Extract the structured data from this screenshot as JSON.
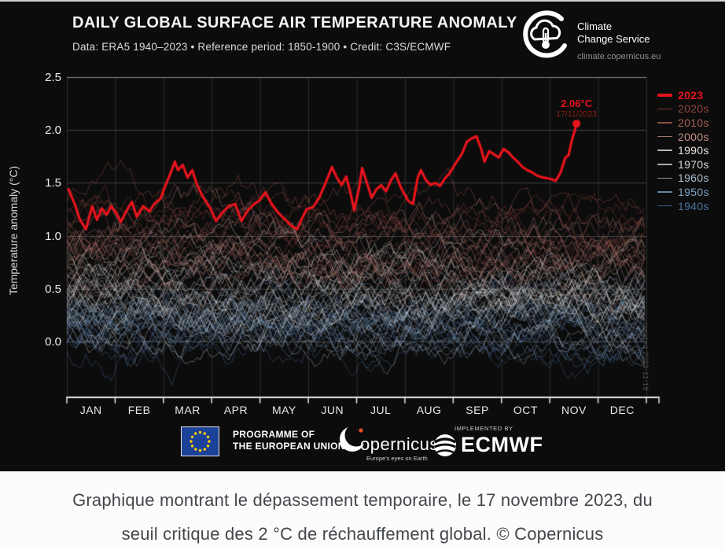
{
  "header": {
    "title": "DAILY GLOBAL SURFACE AIR TEMPERATURE ANOMALY",
    "subtitle": "Data: ERA5 1940–2023 • Reference period: 1850-1900 • Credit: C3S/ECMWF"
  },
  "ccs_logo": {
    "line1": "Climate",
    "line2": "Change Service",
    "url": "climate.copernicus.eu"
  },
  "chart_data": {
    "type": "line",
    "title": "DAILY GLOBAL SURFACE AIR TEMPERATURE ANOMALY",
    "subtitle": "Data: ERA5 1940–2023 • Reference period: 1850-1900 • Credit: C3S/ECMWF",
    "ylabel": "Temperature anomaly (°C)",
    "ylim": [
      -0.54,
      2.5
    ],
    "yticks": [
      0.0,
      0.5,
      1.0,
      1.5,
      2.0,
      2.5
    ],
    "grid": true,
    "months": [
      "JAN",
      "FEB",
      "MAR",
      "APR",
      "MAY",
      "JUN",
      "JUL",
      "AUG",
      "SEP",
      "OCT",
      "NOV",
      "DEC"
    ],
    "legend_position": "right",
    "legend": [
      {
        "label": "2023",
        "color": "#e5131d",
        "bold": true
      },
      {
        "label": "2020s",
        "color": "#94453c"
      },
      {
        "label": "2010s",
        "color": "#ab5f53"
      },
      {
        "label": "2000s",
        "color": "#c5908a"
      },
      {
        "label": "1990s",
        "color": "#e9e1da"
      },
      {
        "label": "1970s",
        "color": "#d5d5d5"
      },
      {
        "label": "1960s",
        "color": "#a9bccc"
      },
      {
        "label": "1950s",
        "color": "#7fa3c6"
      },
      {
        "label": "1940s",
        "color": "#4d72a3"
      }
    ],
    "decade_bands": [
      {
        "name": "1940s",
        "color": "#4d72a3",
        "center": 0.13,
        "years": 10,
        "spread": 0.035
      },
      {
        "name": "1950s",
        "color": "#7fa3c6",
        "center": 0.18,
        "years": 10,
        "spread": 0.035
      },
      {
        "name": "1960s",
        "color": "#a9bccc",
        "center": 0.24,
        "years": 10,
        "spread": 0.035
      },
      {
        "name": "1970s",
        "color": "#d5d5d5",
        "center": 0.38,
        "years": 10,
        "spread": 0.035
      },
      {
        "name": "1990s",
        "color": "#e9e1da",
        "center": 0.58,
        "years": 10,
        "spread": 0.04
      },
      {
        "name": "2000s",
        "color": "#c5908a",
        "center": 0.82,
        "years": 10,
        "spread": 0.04
      },
      {
        "name": "2010s",
        "color": "#ab5f53",
        "center": 1.0,
        "years": 10,
        "spread": 0.04
      },
      {
        "name": "2020s",
        "color": "#94453c",
        "center": 1.17,
        "years": 3,
        "spread": 0.07
      }
    ],
    "series_2023": {
      "name": "2023",
      "color": "#e8141c",
      "points_day_value": [
        [
          1,
          1.44
        ],
        [
          5,
          1.3
        ],
        [
          8,
          1.16
        ],
        [
          12,
          1.06
        ],
        [
          16,
          1.28
        ],
        [
          19,
          1.15
        ],
        [
          22,
          1.26
        ],
        [
          25,
          1.2
        ],
        [
          28,
          1.28
        ],
        [
          31,
          1.22
        ],
        [
          34,
          1.13
        ],
        [
          38,
          1.25
        ],
        [
          41,
          1.32
        ],
        [
          44,
          1.18
        ],
        [
          48,
          1.28
        ],
        [
          52,
          1.23
        ],
        [
          55,
          1.3
        ],
        [
          59,
          1.35
        ],
        [
          62,
          1.47
        ],
        [
          65,
          1.58
        ],
        [
          68,
          1.7
        ],
        [
          70,
          1.62
        ],
        [
          73,
          1.67
        ],
        [
          76,
          1.55
        ],
        [
          79,
          1.62
        ],
        [
          82,
          1.48
        ],
        [
          86,
          1.36
        ],
        [
          90,
          1.27
        ],
        [
          94,
          1.14
        ],
        [
          98,
          1.22
        ],
        [
          102,
          1.28
        ],
        [
          106,
          1.3
        ],
        [
          110,
          1.14
        ],
        [
          114,
          1.24
        ],
        [
          118,
          1.3
        ],
        [
          121,
          1.33
        ],
        [
          125,
          1.41
        ],
        [
          129,
          1.3
        ],
        [
          133,
          1.22
        ],
        [
          137,
          1.16
        ],
        [
          141,
          1.1
        ],
        [
          145,
          1.06
        ],
        [
          148,
          1.16
        ],
        [
          151,
          1.25
        ],
        [
          155,
          1.27
        ],
        [
          159,
          1.36
        ],
        [
          163,
          1.5
        ],
        [
          167,
          1.65
        ],
        [
          170,
          1.55
        ],
        [
          173,
          1.48
        ],
        [
          176,
          1.56
        ],
        [
          179,
          1.38
        ],
        [
          181,
          1.24
        ],
        [
          184,
          1.45
        ],
        [
          186,
          1.64
        ],
        [
          189,
          1.5
        ],
        [
          192,
          1.36
        ],
        [
          195,
          1.44
        ],
        [
          198,
          1.48
        ],
        [
          201,
          1.42
        ],
        [
          204,
          1.52
        ],
        [
          207,
          1.59
        ],
        [
          210,
          1.47
        ],
        [
          212,
          1.41
        ],
        [
          215,
          1.33
        ],
        [
          218,
          1.3
        ],
        [
          221,
          1.55
        ],
        [
          223,
          1.62
        ],
        [
          226,
          1.53
        ],
        [
          229,
          1.48
        ],
        [
          232,
          1.5
        ],
        [
          235,
          1.47
        ],
        [
          238,
          1.54
        ],
        [
          241,
          1.59
        ],
        [
          243,
          1.64
        ],
        [
          246,
          1.71
        ],
        [
          249,
          1.78
        ],
        [
          252,
          1.89
        ],
        [
          255,
          1.92
        ],
        [
          258,
          1.94
        ],
        [
          261,
          1.82
        ],
        [
          263,
          1.7
        ],
        [
          266,
          1.8
        ],
        [
          269,
          1.77
        ],
        [
          272,
          1.74
        ],
        [
          275,
          1.82
        ],
        [
          278,
          1.79
        ],
        [
          281,
          1.74
        ],
        [
          284,
          1.7
        ],
        [
          287,
          1.65
        ],
        [
          290,
          1.62
        ],
        [
          293,
          1.6
        ],
        [
          296,
          1.57
        ],
        [
          300,
          1.55
        ],
        [
          304,
          1.54
        ],
        [
          308,
          1.52
        ],
        [
          311,
          1.6
        ],
        [
          314,
          1.74
        ],
        [
          316,
          1.76
        ],
        [
          318,
          1.9
        ],
        [
          320,
          2.0
        ],
        [
          321,
          2.06
        ]
      ]
    },
    "annotation": {
      "value": "2.06°C",
      "date": "17/11/2023",
      "day": 321,
      "anomaly": 2.06
    },
    "watermark": "created 2023-11-19"
  },
  "footer": {
    "eu_line1": "PROGRAMME OF",
    "eu_line2": "THE EUROPEAN UNION",
    "copernicus_word": "opernicus",
    "copernicus_tag": "Europe's eyes on Earth",
    "implemented_by": "IMPLEMENTED BY",
    "ecmwf": "ECMWF"
  },
  "caption": {
    "line1": "Graphique montrant le dépassement temporaire, le 17 novembre 2023, du",
    "line2": "seuil critique des 2 °C de réchauffement global. © Copernicus"
  }
}
